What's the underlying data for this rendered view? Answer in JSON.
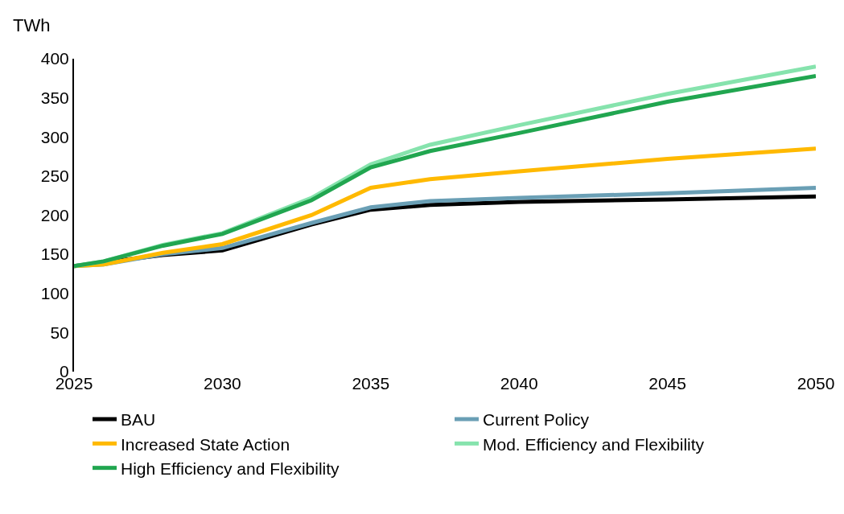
{
  "chart_data": {
    "type": "line",
    "ylabel": "TWh",
    "x": [
      2025,
      2026,
      2028,
      2030,
      2033,
      2035,
      2037,
      2040,
      2045,
      2050
    ],
    "series": [
      {
        "name": "BAU",
        "color": "#000000",
        "x": [
          2025,
          2028,
          2030,
          2033,
          2035,
          2037,
          2040,
          2045,
          2050
        ],
        "values": [
          135,
          149,
          155,
          188,
          207,
          213,
          217,
          220,
          224
        ]
      },
      {
        "name": "Current Policy",
        "color": "#6a9fb5",
        "values": [
          135,
          137,
          150,
          158,
          190,
          210,
          218,
          222,
          228,
          235
        ]
      },
      {
        "name": "Increased State Action",
        "color": "#ffb900",
        "values": [
          135,
          137,
          152,
          163,
          200,
          235,
          246,
          256,
          272,
          285
        ]
      },
      {
        "name": "Mod. Efficiency and Flexibility",
        "color": "#86e3ad",
        "values": [
          135,
          141,
          162,
          177,
          222,
          265,
          290,
          315,
          355,
          390
        ]
      },
      {
        "name": "High Efficiency and Flexibility",
        "color": "#21a650",
        "values": [
          135,
          141,
          161,
          176,
          219,
          261,
          282,
          305,
          345,
          378
        ]
      }
    ],
    "xlim": [
      2025,
      2050
    ],
    "xticks": [
      2025,
      2030,
      2035,
      2040,
      2045,
      2050
    ],
    "ylim": [
      0,
      400
    ],
    "yticks": [
      0,
      50,
      100,
      150,
      200,
      250,
      300,
      350,
      400
    ],
    "grid": false,
    "legend": "bottom",
    "marker": "none",
    "line_style": "solid"
  }
}
